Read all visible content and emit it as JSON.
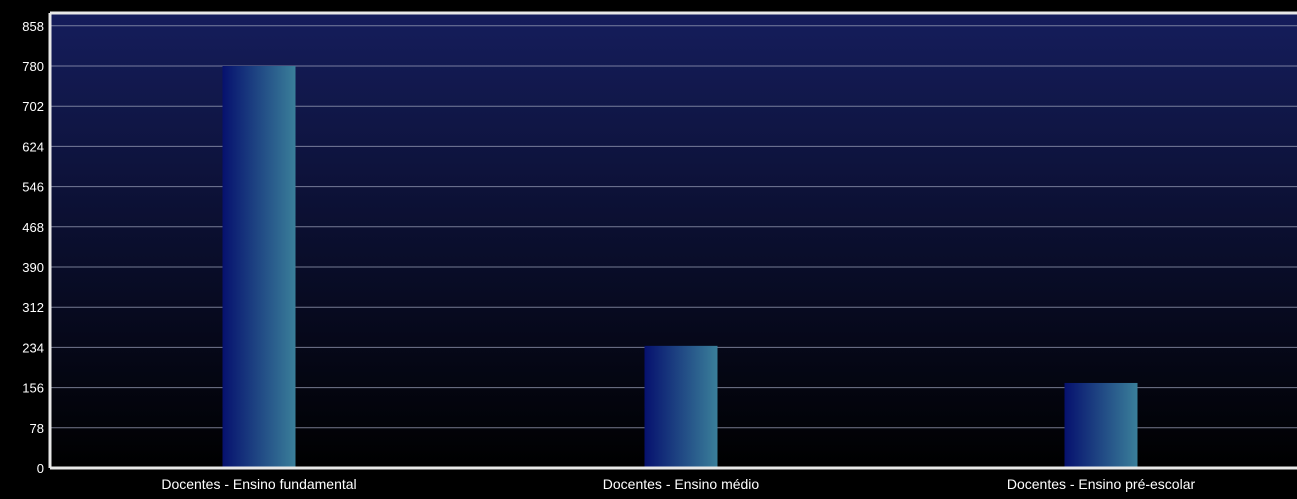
{
  "chart_data": {
    "type": "bar",
    "categories": [
      "Docentes - Ensino fundamental",
      "Docentes - Ensino médio",
      "Docentes - Ensino pré-escolar"
    ],
    "values": [
      780,
      237,
      165
    ],
    "title": "",
    "xlabel": "",
    "ylabel": "",
    "ylim": [
      0,
      858
    ],
    "yticks": [
      0,
      78,
      156,
      234,
      312,
      390,
      468,
      546,
      624,
      702,
      780,
      858
    ],
    "grid": true,
    "legend": "none"
  },
  "colors": {
    "background": "#000000",
    "plot_top": "#151d5c",
    "plot_bottom": "#000000",
    "bar_left": "#06116e",
    "bar_right": "#3a7f9a",
    "grid": "#9a9fb8",
    "frame": "#e8e8e8",
    "text": "#ffffff"
  }
}
